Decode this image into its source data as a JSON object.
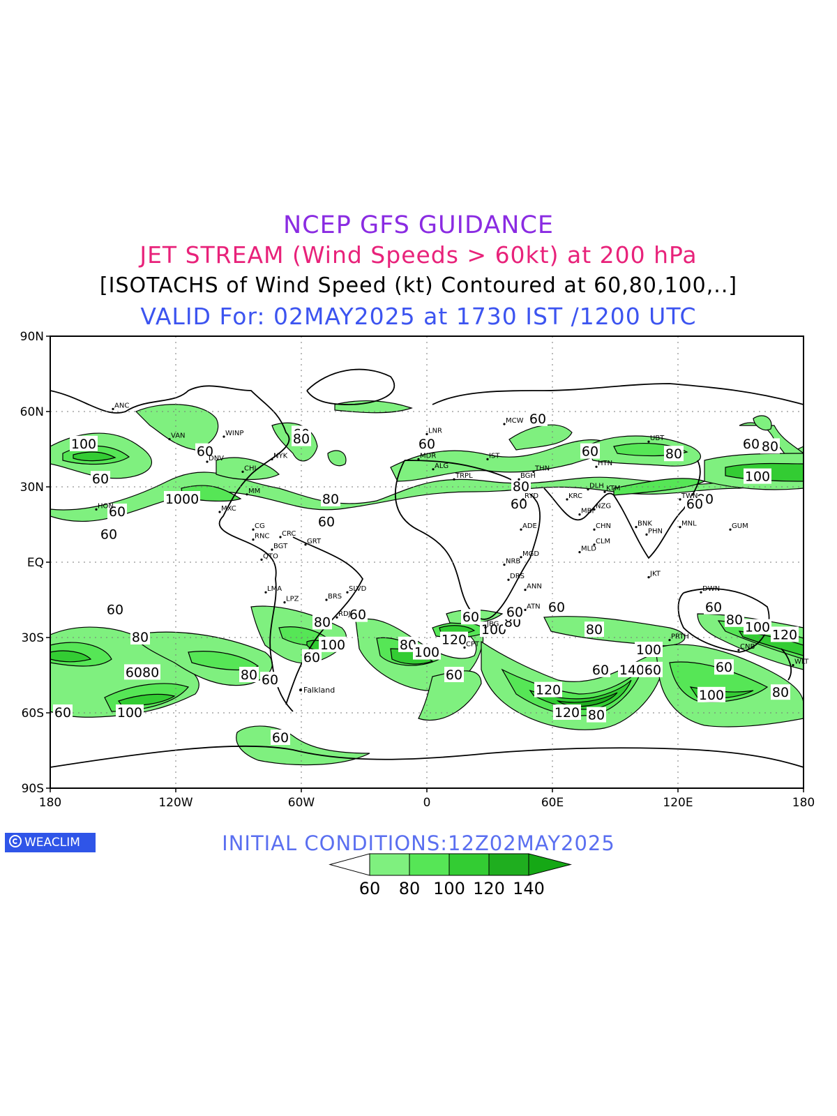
{
  "header": {
    "line1": "NCEP GFS GUIDANCE",
    "line2": "JET STREAM (Wind Speeds > 60kt) at 200 hPa",
    "line3": "[ISOTACHS of Wind Speed (kt) Contoured at 60,80,100,..]",
    "line4": "VALID For: 02MAY2025 at 1730 IST /1200 UTC",
    "colors": {
      "line1": "#8a2be2",
      "line2": "#e8227a",
      "line3": "#000000",
      "line4": "#3c54f0"
    }
  },
  "axes": {
    "lat_labels": [
      "90N",
      "60N",
      "30N",
      "EQ",
      "30S",
      "60S",
      "90S"
    ],
    "lon_labels": [
      "180",
      "120W",
      "60W",
      "0",
      "60E",
      "120E",
      "180"
    ]
  },
  "footer": {
    "initial_conditions": "INITIAL CONDITIONS:12Z02MAY2025",
    "initial_color": "#5a6ff0",
    "logo_text": "WEACLIM",
    "logo_icon": "copyright-circle-icon"
  },
  "legend": {
    "levels": [
      "60",
      "80",
      "100",
      "120",
      "140"
    ],
    "colors": [
      "#ffffff",
      "#7ff07f",
      "#56e656",
      "#33cc33",
      "#1fae1f",
      "#15a815"
    ]
  },
  "map": {
    "fill_colors": {
      "60": "#7ff07f",
      "80": "#56e656",
      "100": "#33cc33",
      "120": "#1fae1f",
      "140": "#15a815"
    },
    "contour_labels": [
      {
        "text": "100",
        "lon": -164,
        "lat": 47
      },
      {
        "text": "60",
        "lon": -156,
        "lat": 33
      },
      {
        "text": "60",
        "lon": -148,
        "lat": 20
      },
      {
        "text": "60",
        "lon": -152,
        "lat": 11
      },
      {
        "text": "1000",
        "lon": -117,
        "lat": 25
      },
      {
        "text": "60",
        "lon": -106,
        "lat": 44
      },
      {
        "text": "60",
        "lon": -60,
        "lat": 51
      },
      {
        "text": "80",
        "lon": -60,
        "lat": 49
      },
      {
        "text": "80",
        "lon": -46,
        "lat": 25
      },
      {
        "text": "60",
        "lon": -48,
        "lat": 16
      },
      {
        "text": "60",
        "lon": 0,
        "lat": 47
      },
      {
        "text": "60",
        "lon": 53,
        "lat": 57
      },
      {
        "text": "80",
        "lon": 45,
        "lat": 30
      },
      {
        "text": "60",
        "lon": 44,
        "lat": 23
      },
      {
        "text": "60",
        "lon": 78,
        "lat": 44
      },
      {
        "text": "80",
        "lon": 118,
        "lat": 43
      },
      {
        "text": "60",
        "lon": 155,
        "lat": 47
      },
      {
        "text": "80",
        "lon": 164,
        "lat": 46
      },
      {
        "text": "100",
        "lon": 158,
        "lat": 34
      },
      {
        "text": "80",
        "lon": 133,
        "lat": 25
      },
      {
        "text": "60",
        "lon": 128,
        "lat": 23
      },
      {
        "text": "60",
        "lon": -149,
        "lat": -19
      },
      {
        "text": "80",
        "lon": -137,
        "lat": -30
      },
      {
        "text": "6080",
        "lon": -136,
        "lat": -44
      },
      {
        "text": "100",
        "lon": -142,
        "lat": -60
      },
      {
        "text": "60",
        "lon": -174,
        "lat": -60
      },
      {
        "text": "80",
        "lon": -85,
        "lat": -45
      },
      {
        "text": "60",
        "lon": -75,
        "lat": -47
      },
      {
        "text": "60",
        "lon": -55,
        "lat": -38
      },
      {
        "text": "100",
        "lon": -45,
        "lat": -33
      },
      {
        "text": "80",
        "lon": -50,
        "lat": -24
      },
      {
        "text": "60",
        "lon": -33,
        "lat": -21
      },
      {
        "text": "60",
        "lon": -70,
        "lat": -70
      },
      {
        "text": "80",
        "lon": -9,
        "lat": -33
      },
      {
        "text": "100",
        "lon": 0,
        "lat": -36
      },
      {
        "text": "120",
        "lon": 13,
        "lat": -31
      },
      {
        "text": "60",
        "lon": 21,
        "lat": -22
      },
      {
        "text": "100",
        "lon": 32,
        "lat": -27
      },
      {
        "text": "80",
        "lon": 41,
        "lat": -24
      },
      {
        "text": "60",
        "lon": 42,
        "lat": -20
      },
      {
        "text": "60",
        "lon": 62,
        "lat": -18
      },
      {
        "text": "60",
        "lon": 13,
        "lat": -45
      },
      {
        "text": "80",
        "lon": 80,
        "lat": -27
      },
      {
        "text": "120",
        "lon": 58,
        "lat": -51
      },
      {
        "text": "120",
        "lon": 67,
        "lat": -60
      },
      {
        "text": "80",
        "lon": 81,
        "lat": -61
      },
      {
        "text": "60",
        "lon": 83,
        "lat": -43
      },
      {
        "text": "140",
        "lon": 98,
        "lat": -43
      },
      {
        "text": "60",
        "lon": 108,
        "lat": -43
      },
      {
        "text": "100",
        "lon": 106,
        "lat": -35
      },
      {
        "text": "60",
        "lon": 137,
        "lat": -18
      },
      {
        "text": "80",
        "lon": 147,
        "lat": -23
      },
      {
        "text": "100",
        "lon": 158,
        "lat": -26
      },
      {
        "text": "120",
        "lon": 171,
        "lat": -29
      },
      {
        "text": "60",
        "lon": 142,
        "lat": -42
      },
      {
        "text": "100",
        "lon": 136,
        "lat": -53
      },
      {
        "text": "80",
        "lon": 169,
        "lat": -52
      }
    ],
    "places": [
      {
        "text": "Falkland",
        "lon": -59,
        "lat": -52
      }
    ],
    "stations": [
      {
        "text": "ANC",
        "lon": -150,
        "lat": 61
      },
      {
        "text": "HON",
        "lon": -158,
        "lat": 21
      },
      {
        "text": "VAN",
        "lon": -123,
        "lat": 49
      },
      {
        "text": "WINP",
        "lon": -97,
        "lat": 50
      },
      {
        "text": "DNV",
        "lon": -105,
        "lat": 40
      },
      {
        "text": "NYK",
        "lon": -74,
        "lat": 41
      },
      {
        "text": "CHI",
        "lon": -88,
        "lat": 36
      },
      {
        "text": "MM",
        "lon": -86,
        "lat": 27
      },
      {
        "text": "MXC",
        "lon": -99,
        "lat": 20
      },
      {
        "text": "CG",
        "lon": -83,
        "lat": 13
      },
      {
        "text": "RNC",
        "lon": -83,
        "lat": 9
      },
      {
        "text": "CRC",
        "lon": -70,
        "lat": 10
      },
      {
        "text": "BGT",
        "lon": -74,
        "lat": 5
      },
      {
        "text": "GRT",
        "lon": -58,
        "lat": 7
      },
      {
        "text": "QTO",
        "lon": -79,
        "lat": 1
      },
      {
        "text": "LMA",
        "lon": -77,
        "lat": -12
      },
      {
        "text": "LPZ",
        "lon": -68,
        "lat": -16
      },
      {
        "text": "BRS",
        "lon": -48,
        "lat": -15
      },
      {
        "text": "SLVD",
        "lon": -38,
        "lat": -12
      },
      {
        "text": "RDJ",
        "lon": -43,
        "lat": -22
      },
      {
        "text": "MCW",
        "lon": 37,
        "lat": 55
      },
      {
        "text": "LNR",
        "lon": 0,
        "lat": 51
      },
      {
        "text": "MDR",
        "lon": -4,
        "lat": 41
      },
      {
        "text": "ALG",
        "lon": 3,
        "lat": 37
      },
      {
        "text": "TRPL",
        "lon": 13,
        "lat": 33
      },
      {
        "text": "IST",
        "lon": 29,
        "lat": 41
      },
      {
        "text": "BGH",
        "lon": 44,
        "lat": 33
      },
      {
        "text": "THN",
        "lon": 51,
        "lat": 36
      },
      {
        "text": "RYD",
        "lon": 46,
        "lat": 25
      },
      {
        "text": "KRC",
        "lon": 67,
        "lat": 25
      },
      {
        "text": "ADE",
        "lon": 45,
        "lat": 13
      },
      {
        "text": "MGD",
        "lon": 45,
        "lat": 2
      },
      {
        "text": "NRB",
        "lon": 37,
        "lat": -1
      },
      {
        "text": "DRS",
        "lon": 39,
        "lat": -7
      },
      {
        "text": "ANN",
        "lon": 47,
        "lat": -11
      },
      {
        "text": "ATN",
        "lon": 47,
        "lat": -19
      },
      {
        "text": "DLH",
        "lon": 77,
        "lat": 29
      },
      {
        "text": "MBI",
        "lon": 73,
        "lat": 19
      },
      {
        "text": "CLM",
        "lon": 80,
        "lat": 7
      },
      {
        "text": "MLD",
        "lon": 73,
        "lat": 4
      },
      {
        "text": "KTM",
        "lon": 85,
        "lat": 28
      },
      {
        "text": "NZG",
        "lon": 80,
        "lat": 21
      },
      {
        "text": "CHN",
        "lon": 80,
        "lat": 13
      },
      {
        "text": "BNK",
        "lon": 100,
        "lat": 14
      },
      {
        "text": "PHN",
        "lon": 105,
        "lat": 11
      },
      {
        "text": "HTN",
        "lon": 81,
        "lat": 38
      },
      {
        "text": "UBT",
        "lon": 106,
        "lat": 48
      },
      {
        "text": "MNL",
        "lon": 121,
        "lat": 14
      },
      {
        "text": "TWN",
        "lon": 121,
        "lat": 25
      },
      {
        "text": "GUM",
        "lon": 145,
        "lat": 13
      },
      {
        "text": "JKT",
        "lon": 106,
        "lat": -6
      },
      {
        "text": "DWN",
        "lon": 131,
        "lat": -12
      },
      {
        "text": "PRTH",
        "lon": 116,
        "lat": -31
      },
      {
        "text": "CNB",
        "lon": 149,
        "lat": -35
      },
      {
        "text": "WLT",
        "lon": 175,
        "lat": -41
      },
      {
        "text": "JBG",
        "lon": 28,
        "lat": -26
      },
      {
        "text": "CPT",
        "lon": 18,
        "lat": -34
      }
    ]
  }
}
